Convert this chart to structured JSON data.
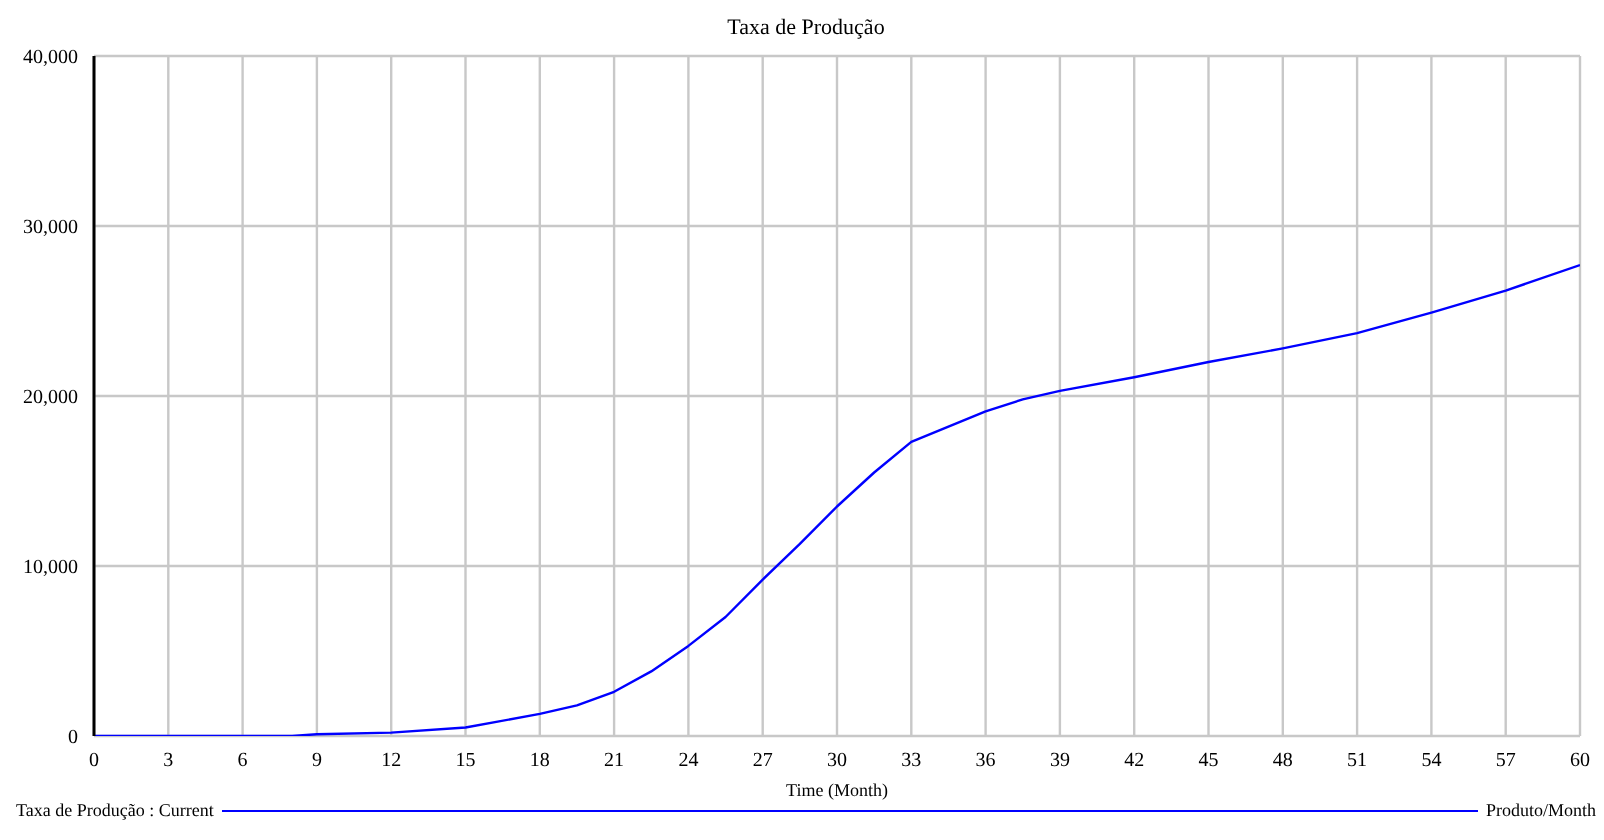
{
  "chart_data": {
    "type": "line",
    "title": "Taxa de Produção",
    "xlabel": "Time (Month)",
    "x": [
      0,
      3,
      6,
      8,
      9,
      12,
      15,
      18,
      19.5,
      21,
      22.5,
      24,
      25.5,
      27,
      28.5,
      30,
      31.5,
      33,
      36,
      37.5,
      39,
      42,
      45,
      48,
      51,
      54,
      57,
      60
    ],
    "series": [
      {
        "name": "Taxa de Produção : Current",
        "color": "#0000ff",
        "values": [
          0,
          0,
          0,
          0,
          100,
          200,
          500,
          1300,
          1800,
          2600,
          3800,
          5300,
          7000,
          9200,
          11300,
          13500,
          15500,
          17300,
          19100,
          19800,
          20300,
          21100,
          22000,
          22800,
          23700,
          24900,
          26200,
          27700
        ]
      }
    ],
    "xlim": [
      0,
      60
    ],
    "xticks": [
      0,
      3,
      6,
      9,
      12,
      15,
      18,
      21,
      24,
      27,
      30,
      33,
      36,
      39,
      42,
      45,
      48,
      51,
      54,
      57,
      60
    ],
    "ylim": [
      0,
      40000
    ],
    "yticks": [
      0,
      {
        "value": 10000,
        "label": "10,000"
      },
      {
        "value": 20000,
        "label": "20,000"
      },
      {
        "value": 30000,
        "label": "30,000"
      },
      {
        "value": 40000,
        "label": "40,000"
      }
    ],
    "grid": true,
    "legend": "bottom",
    "marker": "none",
    "line_style": "solid",
    "annotations": [
      "Produto/Month"
    ]
  }
}
